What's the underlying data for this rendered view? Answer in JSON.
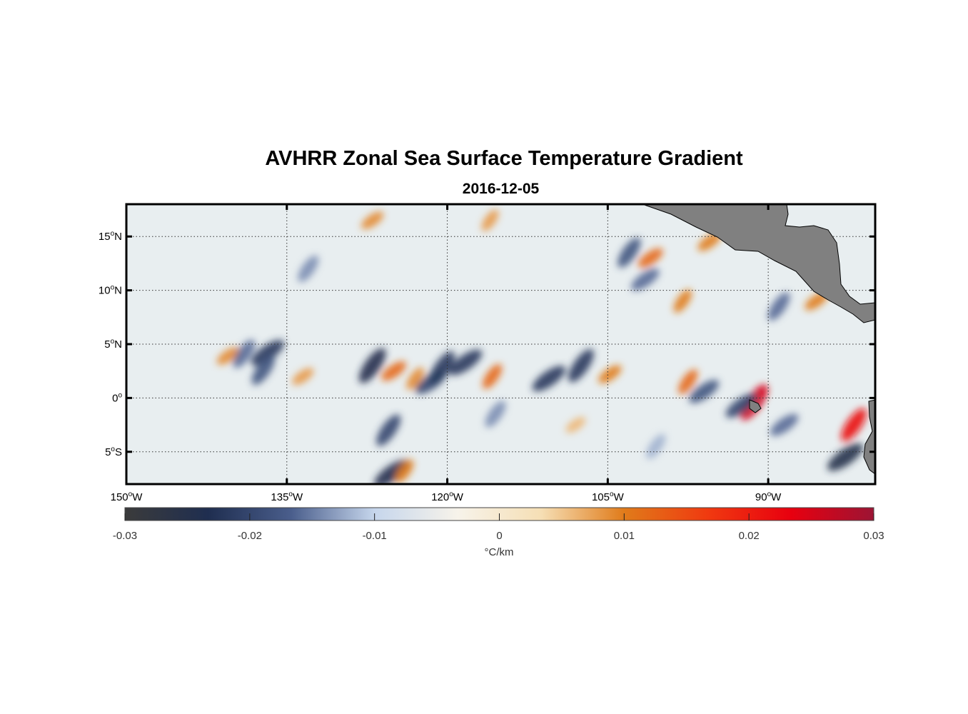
{
  "title": "AVHRR Zonal Sea Surface Temperature Gradient",
  "date": "2016-12-05",
  "map": {
    "lon_range": [
      -150,
      -80
    ],
    "lat_range": [
      -8,
      18
    ],
    "lon_ticks": [
      {
        "value": -150,
        "label": "150",
        "sup": "o",
        "suffix": "W"
      },
      {
        "value": -135,
        "label": "135",
        "sup": "o",
        "suffix": "W"
      },
      {
        "value": -120,
        "label": "120",
        "sup": "o",
        "suffix": "W"
      },
      {
        "value": -105,
        "label": "105",
        "sup": "o",
        "suffix": "W"
      },
      {
        "value": -90,
        "label": "90",
        "sup": "o",
        "suffix": "W"
      }
    ],
    "lat_ticks": [
      {
        "value": 15,
        "label": "15",
        "sup": "o",
        "suffix": "N"
      },
      {
        "value": 10,
        "label": "10",
        "sup": "o",
        "suffix": "N"
      },
      {
        "value": 5,
        "label": "5",
        "sup": "o",
        "suffix": "N"
      },
      {
        "value": 0,
        "label": "0",
        "sup": "o",
        "suffix": ""
      },
      {
        "value": -5,
        "label": "5",
        "sup": "o",
        "suffix": "S"
      }
    ],
    "grid": true,
    "land_color": "#808080",
    "background_color": "#e8eef0"
  },
  "colorbar": {
    "min": -0.03,
    "max": 0.03,
    "ticks": [
      "-0.03",
      "-0.02",
      "-0.01",
      "0",
      "0.01",
      "0.02",
      "0.03"
    ],
    "tick_values": [
      -0.03,
      -0.02,
      -0.01,
      0,
      0.01,
      0.02,
      0.03
    ],
    "unit_label": "°C/km",
    "colors": [
      "#3b3b3b",
      "#1f2e50",
      "#4a5e8c",
      "#c6d6ec",
      "#f7f3ea",
      "#f6dfb5",
      "#e07b1a",
      "#f03a10",
      "#e8000f",
      "#9c1434"
    ]
  },
  "features": [
    {
      "lon": -136.8,
      "lat": 4.2,
      "v": -0.022
    },
    {
      "lon": -137.2,
      "lat": 2.6,
      "v": -0.018
    },
    {
      "lon": -140.5,
      "lat": 3.9,
      "v": 0.009
    },
    {
      "lon": -139.0,
      "lat": 4.1,
      "v": -0.016
    },
    {
      "lon": -133.5,
      "lat": 2.0,
      "v": 0.008
    },
    {
      "lon": -127.0,
      "lat": 3.0,
      "v": -0.024
    },
    {
      "lon": -125.0,
      "lat": 2.5,
      "v": 0.012
    },
    {
      "lon": -123.0,
      "lat": 1.8,
      "v": 0.009
    },
    {
      "lon": -121.5,
      "lat": 1.5,
      "v": -0.02
    },
    {
      "lon": -120.5,
      "lat": 2.8,
      "v": -0.022
    },
    {
      "lon": -118.3,
      "lat": 3.3,
      "v": -0.022
    },
    {
      "lon": -115.8,
      "lat": 2.0,
      "v": 0.012
    },
    {
      "lon": -110.5,
      "lat": 1.8,
      "v": -0.022
    },
    {
      "lon": -107.5,
      "lat": 3.0,
      "v": -0.022
    },
    {
      "lon": -104.8,
      "lat": 2.2,
      "v": 0.01
    },
    {
      "lon": -97.5,
      "lat": 1.5,
      "v": 0.012
    },
    {
      "lon": -96.0,
      "lat": 0.6,
      "v": -0.018
    },
    {
      "lon": -91.3,
      "lat": -0.4,
      "v": 0.025
    },
    {
      "lon": -92.5,
      "lat": -0.7,
      "v": -0.02
    },
    {
      "lon": -82.0,
      "lat": -2.5,
      "v": 0.022
    },
    {
      "lon": -82.8,
      "lat": -5.5,
      "v": -0.025
    },
    {
      "lon": -125.5,
      "lat": -3.0,
      "v": -0.02
    },
    {
      "lon": -125.2,
      "lat": -7.0,
      "v": -0.024
    },
    {
      "lon": -124.0,
      "lat": -6.8,
      "v": 0.01
    },
    {
      "lon": -127.0,
      "lat": 16.5,
      "v": 0.009
    },
    {
      "lon": -116.0,
      "lat": 16.5,
      "v": 0.008
    },
    {
      "lon": -101.0,
      "lat": 13.0,
      "v": 0.012
    },
    {
      "lon": -103.0,
      "lat": 13.5,
      "v": -0.018
    },
    {
      "lon": -95.5,
      "lat": 14.5,
      "v": 0.01
    },
    {
      "lon": -98.0,
      "lat": 9.0,
      "v": 0.01
    },
    {
      "lon": -101.5,
      "lat": 11.0,
      "v": -0.016
    },
    {
      "lon": -89.0,
      "lat": 8.5,
      "v": -0.016
    },
    {
      "lon": -85.5,
      "lat": 9.0,
      "v": 0.01
    },
    {
      "lon": -133.0,
      "lat": 12.0,
      "v": -0.014
    },
    {
      "lon": -108.0,
      "lat": -2.5,
      "v": 0.006
    },
    {
      "lon": -115.5,
      "lat": -1.5,
      "v": -0.014
    },
    {
      "lon": -88.5,
      "lat": -2.5,
      "v": -0.016
    },
    {
      "lon": -100.5,
      "lat": -4.5,
      "v": -0.012
    }
  ]
}
